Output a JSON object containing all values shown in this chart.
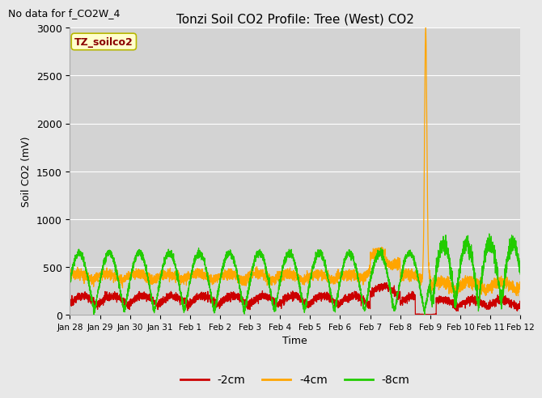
{
  "title": "Tonzi Soil CO2 Profile: Tree (West) CO2",
  "no_data_annotation": "No data for f_CO2W_4",
  "legend_box_label": "TZ_soilco2",
  "xlabel": "Time",
  "ylabel": "Soil CO2 (mV)",
  "ylim": [
    0,
    3000
  ],
  "line_colors": {
    "2cm": "#cc0000",
    "4cm": "#ffa500",
    "8cm": "#22cc00"
  },
  "background_color": "#e8e8e8",
  "plot_bg_color": "#d3d3d3",
  "x_tick_labels": [
    "Jan 28",
    "Jan 29",
    "Jan 30",
    "Jan 31",
    "Feb 1",
    "Feb 2",
    "Feb 3",
    "Feb 4",
    "Feb 5",
    "Feb 6",
    "Feb 7",
    "Feb 8",
    "Feb 9",
    "Feb 10",
    "Feb 11",
    "Feb 12"
  ],
  "n_points": 5000,
  "total_days": 15
}
